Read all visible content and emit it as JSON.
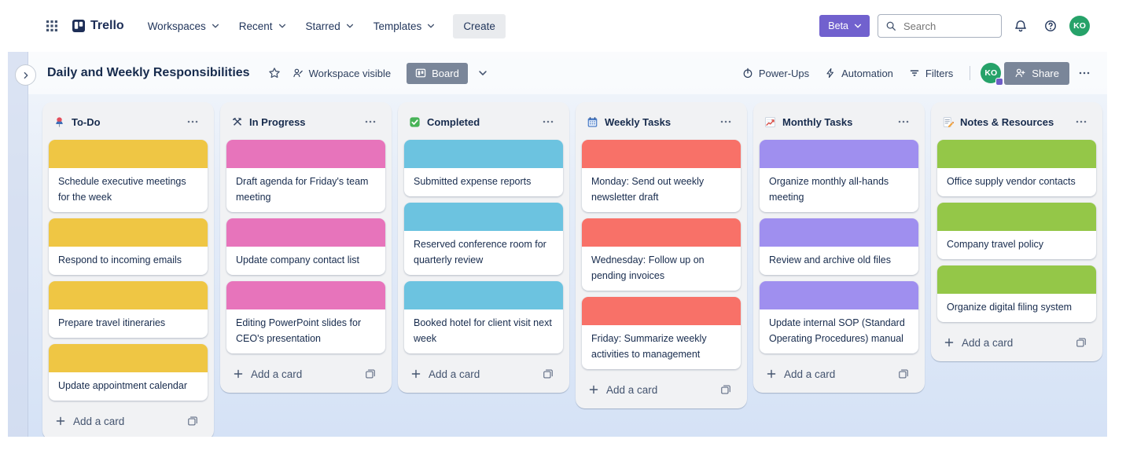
{
  "topnav": {
    "logo_text": "Trello",
    "menus": [
      {
        "label": "Workspaces"
      },
      {
        "label": "Recent"
      },
      {
        "label": "Starred"
      },
      {
        "label": "Templates"
      }
    ],
    "create_label": "Create",
    "beta_label": "Beta",
    "search_placeholder": "Search",
    "avatar_initials": "KO"
  },
  "board_header": {
    "title": "Daily and Weekly Responsibilities",
    "visibility_label": "Workspace visible",
    "view_label": "Board",
    "power_ups_label": "Power-Ups",
    "automation_label": "Automation",
    "filters_label": "Filters",
    "share_label": "Share",
    "avatar_initials": "KO"
  },
  "board": {
    "add_card_label": "Add a card",
    "lists": [
      {
        "id": "todo",
        "icon": "pushpin",
        "title": "To-Do",
        "label_color": "#EFC644",
        "cards": [
          "Schedule executive meetings for the week",
          "Respond to incoming emails",
          "Prepare travel itineraries",
          "Update appointment calendar"
        ]
      },
      {
        "id": "in-progress",
        "icon": "hammer-pick",
        "title": "In Progress",
        "label_color": "#E774BB",
        "cards": [
          "Draft agenda for Friday's team meeting",
          "Update company contact list",
          "Editing PowerPoint slides for CEO's presentation"
        ]
      },
      {
        "id": "completed",
        "icon": "check-box",
        "title": "Completed",
        "label_color": "#6CC3E0",
        "cards": [
          "Submitted expense reports",
          "Reserved conference room for quarterly review",
          "Booked hotel for client visit next week"
        ]
      },
      {
        "id": "weekly-tasks",
        "icon": "calendar",
        "title": "Weekly Tasks",
        "label_color": "#F87168",
        "cards": [
          "Monday: Send out weekly newsletter draft",
          "Wednesday: Follow up on pending invoices",
          "Friday: Summarize weekly activities to management"
        ]
      },
      {
        "id": "monthly-tasks",
        "icon": "chart",
        "title": "Monthly Tasks",
        "label_color": "#9F8FEF",
        "cards": [
          "Organize monthly all-hands meeting",
          "Review and archive old files",
          "Update internal SOP (Standard Operating Procedures) manual"
        ]
      },
      {
        "id": "notes-resources",
        "icon": "memo",
        "title": "Notes & Resources",
        "label_color": "#94C748",
        "cards": [
          "Office supply vendor contacts",
          "Company travel policy",
          "Organize digital filing system"
        ]
      }
    ]
  },
  "colors": {
    "label_yellow": "#EFC644",
    "label_pink": "#E774BB",
    "label_sky": "#6CC3E0",
    "label_red": "#F87168",
    "label_purple": "#9F8FEF",
    "label_green": "#94C748",
    "beta_purple": "#7161CE",
    "avatar_green": "#26A269",
    "gray_button": "#7A8699",
    "list_background": "#F1F2F4",
    "text_dark": "#172B4D"
  },
  "icons": [
    "apps-grid-icon",
    "trello-logo-icon",
    "chevron-down-icon",
    "search-icon",
    "bell-icon",
    "help-icon",
    "chevron-right-icon",
    "star-icon",
    "workspace-visible-icon",
    "board-view-icon",
    "power-ups-icon",
    "automation-icon",
    "filters-icon",
    "share-person-icon",
    "more-icon",
    "plus-icon",
    "template-icon",
    "pushpin-icon",
    "hammer-pick-icon",
    "check-box-icon",
    "calendar-icon",
    "chart-icon",
    "memo-icon"
  ]
}
